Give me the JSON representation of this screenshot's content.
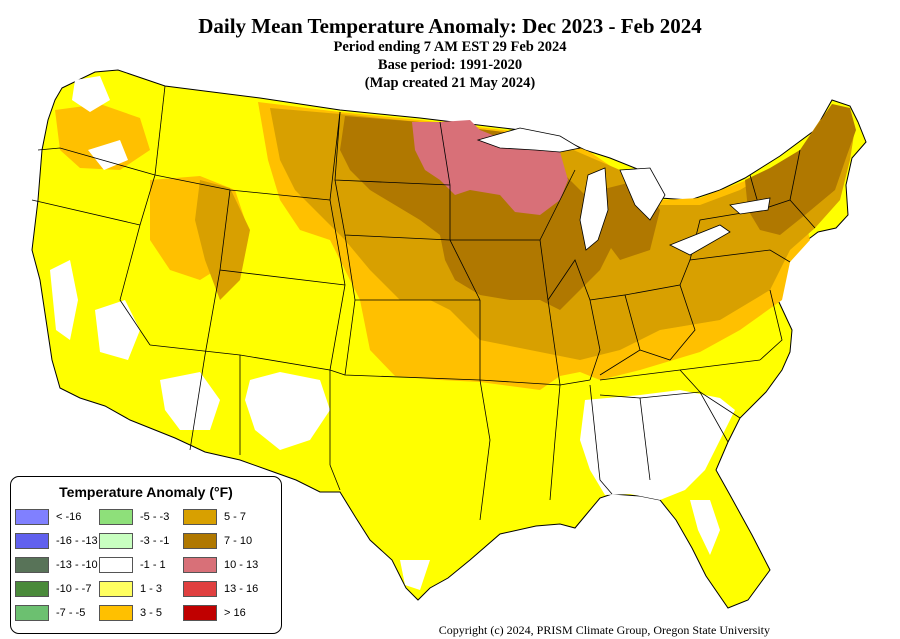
{
  "header": {
    "title": "Daily Mean Temperature Anomaly: Dec 2023 - Feb 2024",
    "line1": "Period ending 7 AM EST 29 Feb 2024",
    "line2": "Base period: 1991-2020",
    "line3": "(Map created 21 May 2024)"
  },
  "legend": {
    "title": "Temperature Anomaly (°F)",
    "items": [
      {
        "label": "< -16",
        "color": "#8080ff"
      },
      {
        "label": "-16 - -13",
        "color": "#6060ee"
      },
      {
        "label": "-13 - -10",
        "color": "#587358"
      },
      {
        "label": "-10 - -7",
        "color": "#4a8a3a"
      },
      {
        "label": "-7 - -5",
        "color": "#6cc070"
      },
      {
        "label": "-5 - -3",
        "color": "#8ee07a"
      },
      {
        "label": "-3 - -1",
        "color": "#c8ffc0"
      },
      {
        "label": "-1 - 1",
        "color": "#ffffff"
      },
      {
        "label": "1 - 3",
        "color": "#ffff60"
      },
      {
        "label": "3 - 5",
        "color": "#ffc000"
      },
      {
        "label": "5 - 7",
        "color": "#d8a000"
      },
      {
        "label": "7 - 10",
        "color": "#b07800"
      },
      {
        "label": "10 - 13",
        "color": "#d87078"
      },
      {
        "label": "13 - 16",
        "color": "#e04040"
      },
      {
        "label": "> 16",
        "color": "#c00000"
      }
    ]
  },
  "footer": {
    "copyright": "Copyright (c) 2024, PRISM Climate Group, Oregon State University"
  }
}
